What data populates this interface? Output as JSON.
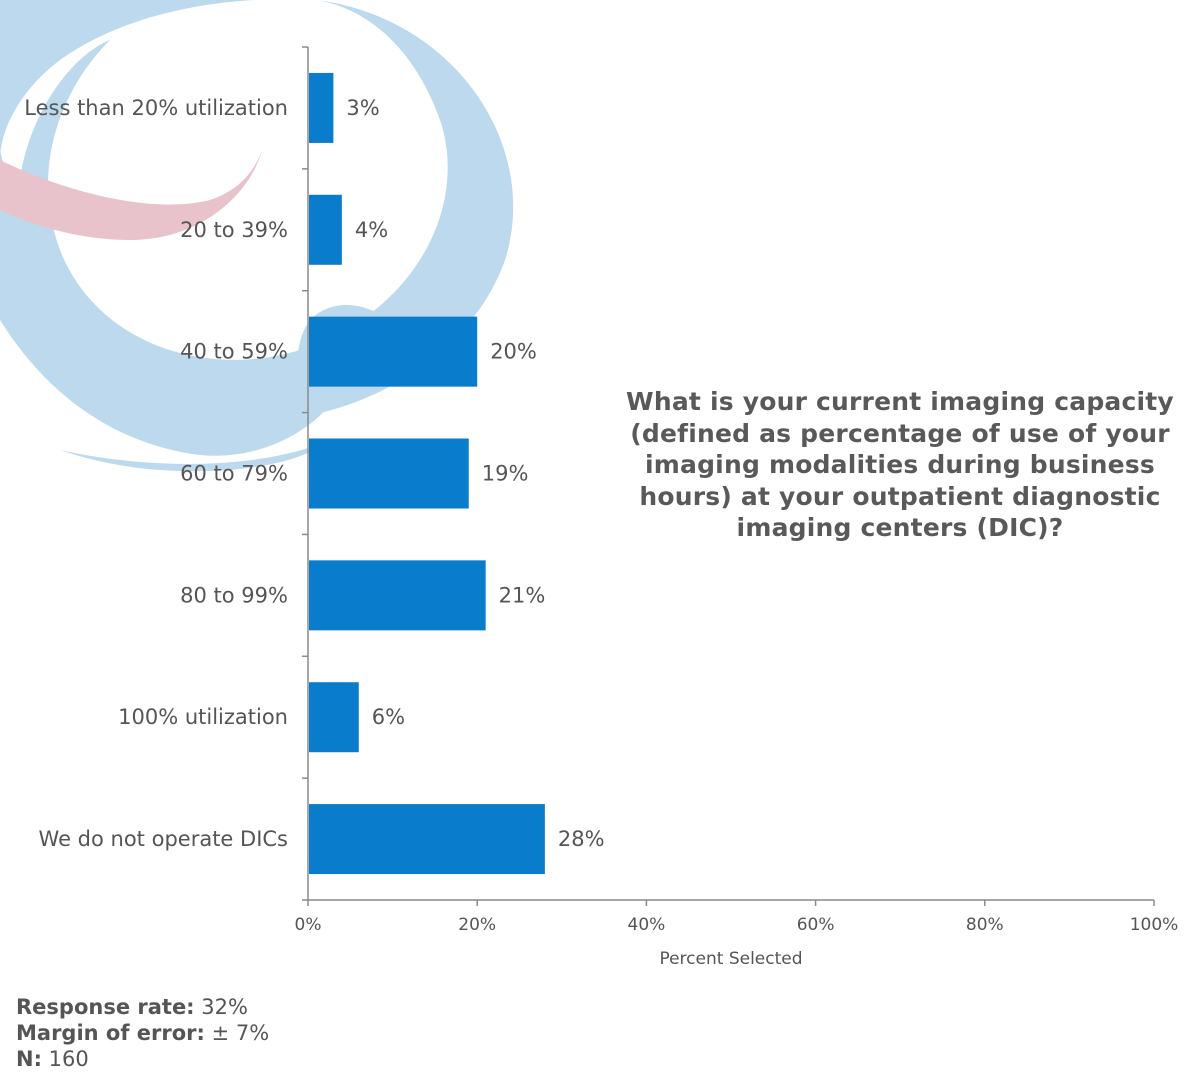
{
  "chart_data": {
    "type": "bar",
    "orientation": "horizontal",
    "title": "What is your current imaging capacity (defined as percentage of use of your imaging modalities during business hours) at your outpatient diagnostic imaging centers (DIC)?",
    "categories": [
      "Less than 20% utilization",
      "20 to 39%",
      "40 to 59%",
      "60 to 79%",
      "80 to 99%",
      "100% utilization",
      "We do not operate DICs"
    ],
    "values": [
      3,
      4,
      20,
      19,
      21,
      6,
      28
    ],
    "value_labels": [
      "3%",
      "4%",
      "20%",
      "19%",
      "21%",
      "6%",
      "28%"
    ],
    "xlabel": "Percent Selected",
    "ylabel": "",
    "xlim": [
      0,
      100
    ],
    "x_ticks": [
      "0%",
      "20%",
      "40%",
      "60%",
      "80%",
      "100%"
    ],
    "bar_color": "#0a7ccc",
    "grid": false,
    "legend": "none"
  },
  "stats": {
    "response_rate": {
      "label": "Response rate:",
      "value": "32%"
    },
    "margin_of_error": {
      "label": "Margin of error:",
      "value": "± 7%"
    },
    "n": {
      "label": "N:",
      "value": "160"
    }
  },
  "colors": {
    "bar": "#0a7ccc",
    "text": "#555555",
    "watermark_blue": "#bcd9ee",
    "watermark_pink": "#e8c3cb"
  }
}
